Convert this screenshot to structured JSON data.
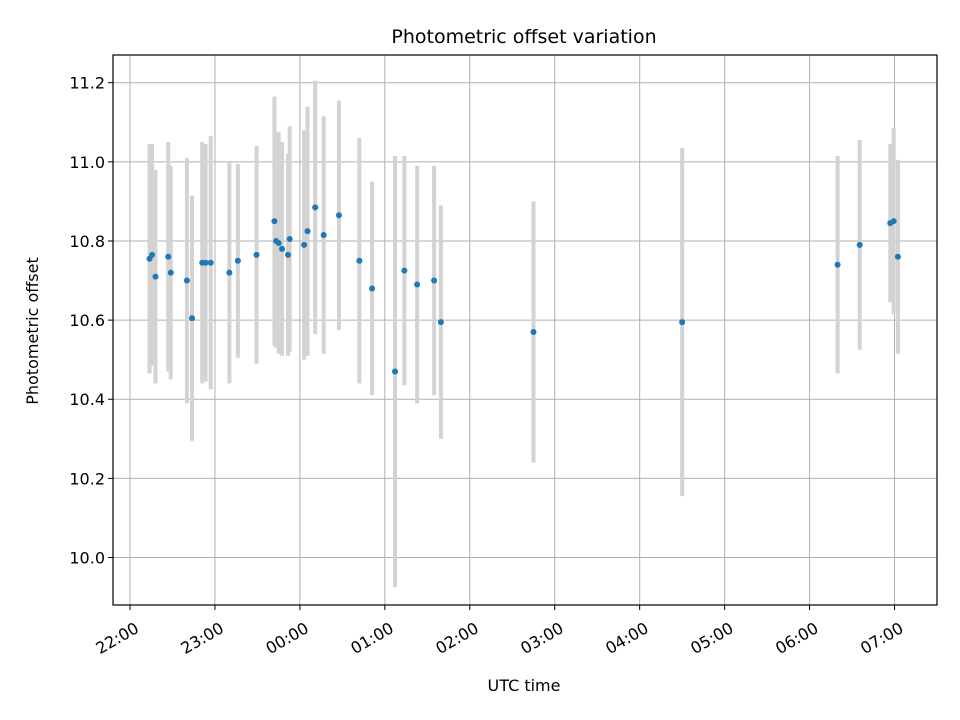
{
  "chart_data": {
    "type": "scatter",
    "title": "Photometric offset variation",
    "xlabel": "UTC time",
    "ylabel": "Photometric offset",
    "x_unit": "hours since 00:00 UTC",
    "xlim": [
      -2.2,
      7.5
    ],
    "ylim": [
      9.88,
      11.27
    ],
    "grid": true,
    "x_ticks": [
      {
        "value": -2,
        "label": "22:00"
      },
      {
        "value": -1,
        "label": "23:00"
      },
      {
        "value": 0,
        "label": "00:00"
      },
      {
        "value": 1,
        "label": "01:00"
      },
      {
        "value": 2,
        "label": "02:00"
      },
      {
        "value": 3,
        "label": "03:00"
      },
      {
        "value": 4,
        "label": "04:00"
      },
      {
        "value": 5,
        "label": "05:00"
      },
      {
        "value": 6,
        "label": "06:00"
      },
      {
        "value": 7,
        "label": "07:00"
      }
    ],
    "y_ticks": [
      {
        "value": 10.0,
        "label": "10.0"
      },
      {
        "value": 10.2,
        "label": "10.2"
      },
      {
        "value": 10.4,
        "label": "10.4"
      },
      {
        "value": 10.6,
        "label": "10.6"
      },
      {
        "value": 10.8,
        "label": "10.8"
      },
      {
        "value": 11.0,
        "label": "11.0"
      },
      {
        "value": 11.2,
        "label": "11.2"
      }
    ],
    "point_color": "#1f77b4",
    "errorbar_color": "#d3d3d3",
    "points": [
      {
        "x": -1.77,
        "y": 10.755,
        "err": 0.29
      },
      {
        "x": -1.74,
        "y": 10.765,
        "err": 0.28
      },
      {
        "x": -1.7,
        "y": 10.71,
        "err": 0.27
      },
      {
        "x": -1.55,
        "y": 10.76,
        "err": 0.29
      },
      {
        "x": -1.52,
        "y": 10.72,
        "err": 0.27
      },
      {
        "x": -1.33,
        "y": 10.7,
        "err": 0.31
      },
      {
        "x": -1.27,
        "y": 10.605,
        "err": 0.31
      },
      {
        "x": -1.15,
        "y": 10.745,
        "err": 0.305
      },
      {
        "x": -1.11,
        "y": 10.745,
        "err": 0.3
      },
      {
        "x": -1.05,
        "y": 10.745,
        "err": 0.32
      },
      {
        "x": -0.83,
        "y": 10.72,
        "err": 0.28
      },
      {
        "x": -0.73,
        "y": 10.75,
        "err": 0.245
      },
      {
        "x": -0.51,
        "y": 10.765,
        "err": 0.275
      },
      {
        "x": -0.3,
        "y": 10.85,
        "err": 0.315
      },
      {
        "x": -0.28,
        "y": 10.8,
        "err": 0.27
      },
      {
        "x": -0.25,
        "y": 10.795,
        "err": 0.28
      },
      {
        "x": -0.21,
        "y": 10.78,
        "err": 0.27
      },
      {
        "x": -0.14,
        "y": 10.765,
        "err": 0.255
      },
      {
        "x": -0.12,
        "y": 10.805,
        "err": 0.285
      },
      {
        "x": 0.05,
        "y": 10.79,
        "err": 0.29
      },
      {
        "x": 0.09,
        "y": 10.825,
        "err": 0.315
      },
      {
        "x": 0.18,
        "y": 10.885,
        "err": 0.32
      },
      {
        "x": 0.28,
        "y": 10.815,
        "err": 0.3
      },
      {
        "x": 0.46,
        "y": 10.865,
        "err": 0.29
      },
      {
        "x": 0.7,
        "y": 10.75,
        "err": 0.31
      },
      {
        "x": 0.85,
        "y": 10.68,
        "err": 0.27
      },
      {
        "x": 1.12,
        "y": 10.47,
        "err": 0.545
      },
      {
        "x": 1.23,
        "y": 10.725,
        "err": 0.29
      },
      {
        "x": 1.38,
        "y": 10.69,
        "err": 0.3
      },
      {
        "x": 1.58,
        "y": 10.7,
        "err": 0.29
      },
      {
        "x": 1.66,
        "y": 10.595,
        "err": 0.295
      },
      {
        "x": 2.75,
        "y": 10.57,
        "err": 0.33
      },
      {
        "x": 4.5,
        "y": 10.595,
        "err": 0.44
      },
      {
        "x": 6.33,
        "y": 10.74,
        "err": 0.275
      },
      {
        "x": 6.59,
        "y": 10.79,
        "err": 0.265
      },
      {
        "x": 6.95,
        "y": 10.845,
        "err": 0.2
      },
      {
        "x": 6.99,
        "y": 10.85,
        "err": 0.235
      },
      {
        "x": 7.04,
        "y": 10.76,
        "err": 0.245
      }
    ]
  }
}
